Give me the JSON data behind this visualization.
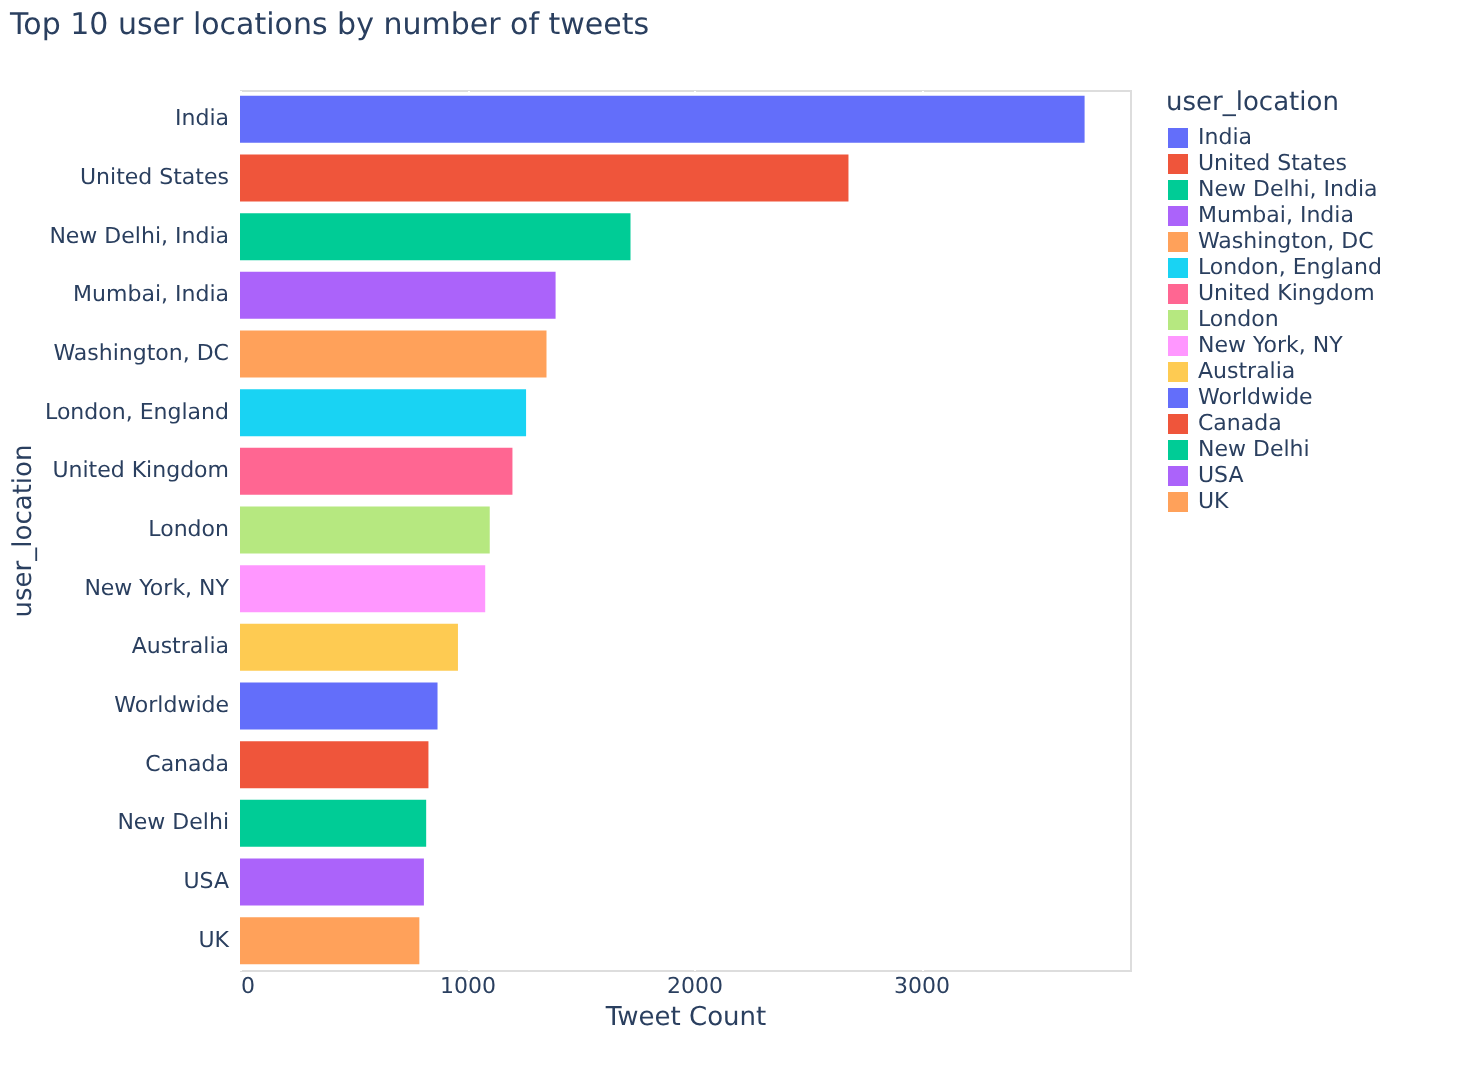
{
  "chart_data": {
    "type": "bar",
    "orientation": "horizontal",
    "title": "Top 10 user locations by number of tweets",
    "xlabel": "Tweet Count",
    "ylabel": "user_location",
    "legend_title": "user_location",
    "categories": [
      "India",
      "United States",
      "New Delhi, India",
      "Mumbai, India",
      "Washington, DC",
      "London, England",
      "United Kingdom",
      "London",
      "New York, NY",
      "Australia",
      "Worldwide",
      "Canada",
      "New Delhi",
      "USA",
      "UK"
    ],
    "series": [
      {
        "name": "India",
        "color": "#636efa",
        "values": [
          3720,
          null,
          null,
          null,
          null,
          null,
          null,
          null,
          null,
          null,
          null,
          null,
          null,
          null,
          null
        ]
      },
      {
        "name": "United States",
        "color": "#ef553b",
        "values": [
          null,
          2680,
          null,
          null,
          null,
          null,
          null,
          null,
          null,
          null,
          null,
          null,
          null,
          null,
          null
        ]
      },
      {
        "name": "New Delhi, India",
        "color": "#00cc96",
        "values": [
          null,
          null,
          1720,
          null,
          null,
          null,
          null,
          null,
          null,
          null,
          null,
          null,
          null,
          null,
          null
        ]
      },
      {
        "name": "Mumbai, India",
        "color": "#ab63fa",
        "values": [
          null,
          null,
          null,
          1390,
          null,
          null,
          null,
          null,
          null,
          null,
          null,
          null,
          null,
          null,
          null
        ]
      },
      {
        "name": "Washington, DC",
        "color": "#ffa15a",
        "values": [
          null,
          null,
          null,
          null,
          1350,
          null,
          null,
          null,
          null,
          null,
          null,
          null,
          null,
          null,
          null
        ]
      },
      {
        "name": "London, England",
        "color": "#19d3f3",
        "values": [
          null,
          null,
          null,
          null,
          null,
          1260,
          null,
          null,
          null,
          null,
          null,
          null,
          null,
          null,
          null
        ]
      },
      {
        "name": "United Kingdom",
        "color": "#ff6692",
        "values": [
          null,
          null,
          null,
          null,
          null,
          null,
          1200,
          null,
          null,
          null,
          null,
          null,
          null,
          null,
          null
        ]
      },
      {
        "name": "London",
        "color": "#b6e880",
        "values": [
          null,
          null,
          null,
          null,
          null,
          null,
          null,
          1100,
          null,
          null,
          null,
          null,
          null,
          null,
          null
        ]
      },
      {
        "name": "New York, NY",
        "color": "#ff97ff",
        "values": [
          null,
          null,
          null,
          null,
          null,
          null,
          null,
          null,
          1080,
          null,
          null,
          null,
          null,
          null,
          null
        ]
      },
      {
        "name": "Australia",
        "color": "#fecb52",
        "values": [
          null,
          null,
          null,
          null,
          null,
          null,
          null,
          null,
          null,
          960,
          null,
          null,
          null,
          null,
          null
        ]
      },
      {
        "name": "Worldwide",
        "color": "#636efa",
        "values": [
          null,
          null,
          null,
          null,
          null,
          null,
          null,
          null,
          null,
          null,
          870,
          null,
          null,
          null,
          null
        ]
      },
      {
        "name": "Canada",
        "color": "#ef553b",
        "values": [
          null,
          null,
          null,
          null,
          null,
          null,
          null,
          null,
          null,
          null,
          null,
          830,
          null,
          null,
          null
        ]
      },
      {
        "name": "New Delhi",
        "color": "#00cc96",
        "values": [
          null,
          null,
          null,
          null,
          null,
          null,
          null,
          null,
          null,
          null,
          null,
          null,
          820,
          null,
          null
        ]
      },
      {
        "name": "USA",
        "color": "#ab63fa",
        "values": [
          null,
          null,
          null,
          null,
          null,
          null,
          null,
          null,
          null,
          null,
          null,
          null,
          null,
          810,
          null
        ]
      },
      {
        "name": "UK",
        "color": "#ffa15a",
        "values": [
          null,
          null,
          null,
          null,
          null,
          null,
          null,
          null,
          null,
          null,
          null,
          null,
          null,
          null,
          790
        ]
      }
    ],
    "xlim": [
      0,
      3920
    ],
    "xticks": [
      0,
      1000,
      2000,
      3000
    ],
    "grid": "x",
    "legend": "right"
  }
}
